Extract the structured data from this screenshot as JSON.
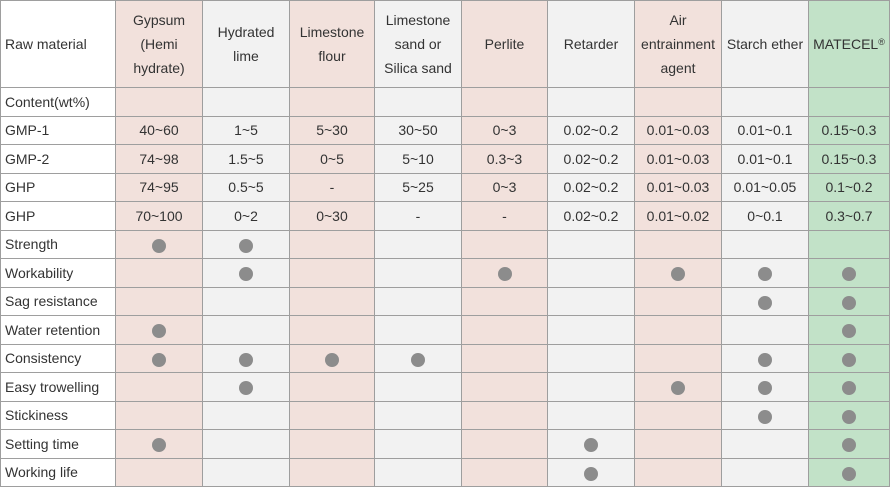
{
  "header": {
    "raw_material": "Raw material",
    "columns": [
      "Gypsum (Hemi hydrate)",
      "Hydrated lime",
      "Limestone flour",
      "Limestone sand or Silica sand",
      "Perlite",
      "Retarder",
      "Air entrainment agent",
      "Starch ether",
      "MATECEL®"
    ]
  },
  "content_label": "Content(wt%)",
  "content_rows": [
    {
      "label": "GMP-1",
      "values": [
        "40~60",
        "1~5",
        "5~30",
        "30~50",
        "0~3",
        "0.02~0.2",
        "0.01~0.03",
        "0.01~0.1",
        "0.15~0.3"
      ]
    },
    {
      "label": "GMP-2",
      "values": [
        "74~98",
        "1.5~5",
        "0~5",
        "5~10",
        "0.3~3",
        "0.02~0.2",
        "0.01~0.03",
        "0.01~0.1",
        "0.15~0.3"
      ]
    },
    {
      "label": "GHP",
      "values": [
        "74~95",
        "0.5~5",
        "-",
        "5~25",
        "0~3",
        "0.02~0.2",
        "0.01~0.03",
        "0.01~0.05",
        "0.1~0.2"
      ]
    },
    {
      "label": "GHP",
      "values": [
        "70~100",
        "0~2",
        "0~30",
        "-",
        "-",
        "0.02~0.2",
        "0.01~0.02",
        "0~0.1",
        "0.3~0.7"
      ]
    }
  ],
  "property_rows": [
    {
      "label": "Strength",
      "marks": [
        true,
        true,
        false,
        false,
        false,
        false,
        false,
        false,
        false
      ]
    },
    {
      "label": "Workability",
      "marks": [
        false,
        true,
        false,
        false,
        true,
        false,
        true,
        true,
        true
      ]
    },
    {
      "label": "Sag resistance",
      "marks": [
        false,
        false,
        false,
        false,
        false,
        false,
        false,
        true,
        true
      ]
    },
    {
      "label": "Water retention",
      "marks": [
        true,
        false,
        false,
        false,
        false,
        false,
        false,
        false,
        true
      ]
    },
    {
      "label": "Consistency",
      "marks": [
        true,
        true,
        true,
        true,
        false,
        false,
        false,
        true,
        true
      ]
    },
    {
      "label": "Easy trowelling",
      "marks": [
        false,
        true,
        false,
        false,
        false,
        false,
        true,
        true,
        true
      ]
    },
    {
      "label": "Stickiness",
      "marks": [
        false,
        false,
        false,
        false,
        false,
        false,
        false,
        true,
        true
      ]
    },
    {
      "label": "Setting time",
      "marks": [
        true,
        false,
        false,
        false,
        false,
        true,
        false,
        false,
        true
      ]
    },
    {
      "label": "Working life",
      "marks": [
        false,
        false,
        false,
        false,
        false,
        true,
        false,
        false,
        true
      ]
    }
  ],
  "colors": {
    "pink_column": "#f2e1dc",
    "grey_column": "#f2f2f2",
    "matecel_column": "#c2e2c8",
    "dot": "#8c8c8c",
    "border": "#9e9e9e"
  },
  "icons": {
    "mark": "filled-circle-icon"
  }
}
